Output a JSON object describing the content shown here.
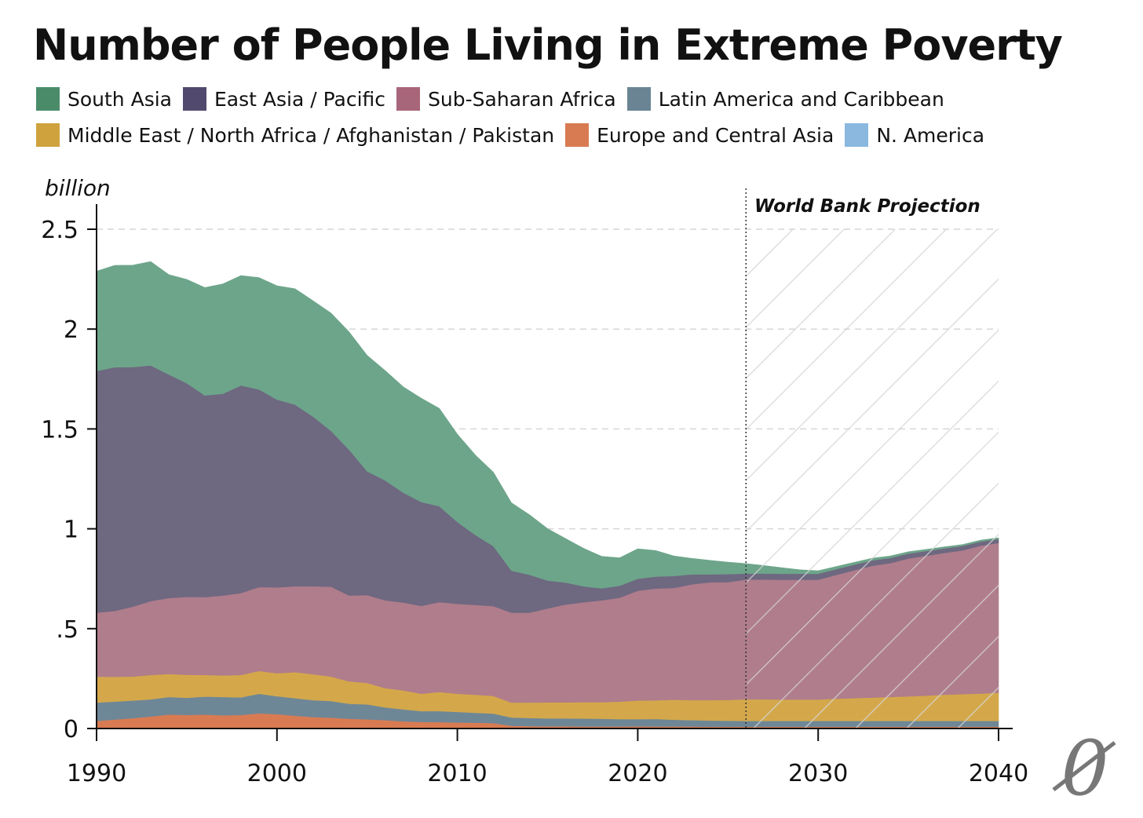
{
  "chart_data": {
    "type": "area",
    "stacked": true,
    "title": "Number of People Living in Extreme Poverty",
    "ylabel": "billion",
    "xlabel": "",
    "xlim": [
      1990,
      2040
    ],
    "ylim": [
      0,
      2.5
    ],
    "x_ticks": [
      1990,
      2000,
      2010,
      2020,
      2030,
      2040
    ],
    "y_ticks": [
      {
        "value": 0,
        "label": "0"
      },
      {
        "value": 0.5,
        "label": ".5"
      },
      {
        "value": 1,
        "label": "1"
      },
      {
        "value": 1.5,
        "label": "1.5"
      },
      {
        "value": 2,
        "label": "2"
      },
      {
        "value": 2.5,
        "label": "2.5"
      }
    ],
    "grid": "horizontal dashed",
    "legend_position": "top",
    "annotation": {
      "label": "World Bank Projection",
      "x_start": 2026
    },
    "x": [
      1990,
      1991,
      1992,
      1993,
      1994,
      1995,
      1996,
      1997,
      1998,
      1999,
      2000,
      2001,
      2002,
      2003,
      2004,
      2005,
      2006,
      2007,
      2008,
      2009,
      2010,
      2011,
      2012,
      2013,
      2014,
      2015,
      2016,
      2017,
      2018,
      2019,
      2020,
      2021,
      2022,
      2023,
      2024,
      2025,
      2026,
      2027,
      2028,
      2029,
      2030,
      2031,
      2032,
      2033,
      2034,
      2035,
      2036,
      2037,
      2038,
      2039,
      2040
    ],
    "series": [
      {
        "name": "N. America",
        "color": "#8ab8de",
        "values": [
          0.002,
          0.002,
          0.002,
          0.002,
          0.002,
          0.002,
          0.002,
          0.002,
          0.002,
          0.002,
          0.002,
          0.002,
          0.002,
          0.002,
          0.002,
          0.002,
          0.002,
          0.002,
          0.002,
          0.002,
          0.002,
          0.002,
          0.002,
          0.002,
          0.002,
          0.002,
          0.002,
          0.002,
          0.002,
          0.002,
          0.003,
          0.003,
          0.003,
          0.003,
          0.003,
          0.003,
          0.003,
          0.003,
          0.003,
          0.003,
          0.003,
          0.003,
          0.003,
          0.003,
          0.003,
          0.003,
          0.003,
          0.003,
          0.003,
          0.003,
          0.003
        ]
      },
      {
        "name": "Europe and Central Asia",
        "color": "#d97b52",
        "values": [
          0.036,
          0.043,
          0.05,
          0.058,
          0.068,
          0.066,
          0.068,
          0.064,
          0.066,
          0.074,
          0.07,
          0.062,
          0.055,
          0.052,
          0.047,
          0.044,
          0.04,
          0.034,
          0.031,
          0.03,
          0.028,
          0.027,
          0.025,
          0.012,
          0.01,
          0.009,
          0.009,
          0.008,
          0.008,
          0.008,
          0.008,
          0.007,
          0.007,
          0.007,
          0.006,
          0.006,
          0.006,
          0.006,
          0.006,
          0.006,
          0.006,
          0.006,
          0.006,
          0.006,
          0.006,
          0.006,
          0.006,
          0.006,
          0.006,
          0.006,
          0.006
        ]
      },
      {
        "name": "Latin America and Caribbean",
        "color": "#6e8797",
        "values": [
          0.092,
          0.09,
          0.088,
          0.086,
          0.088,
          0.086,
          0.09,
          0.092,
          0.088,
          0.098,
          0.09,
          0.088,
          0.085,
          0.084,
          0.075,
          0.075,
          0.064,
          0.06,
          0.054,
          0.055,
          0.053,
          0.05,
          0.048,
          0.041,
          0.041,
          0.04,
          0.04,
          0.04,
          0.039,
          0.037,
          0.036,
          0.038,
          0.034,
          0.032,
          0.031,
          0.03,
          0.029,
          0.029,
          0.029,
          0.029,
          0.029,
          0.029,
          0.029,
          0.029,
          0.029,
          0.029,
          0.029,
          0.029,
          0.029,
          0.029,
          0.029
        ]
      },
      {
        "name": "Middle East / North Africa / Afghanistan / Pakistan",
        "color": "#d4a84a",
        "values": [
          0.13,
          0.124,
          0.12,
          0.122,
          0.115,
          0.115,
          0.108,
          0.108,
          0.112,
          0.114,
          0.115,
          0.13,
          0.13,
          0.122,
          0.112,
          0.107,
          0.096,
          0.095,
          0.087,
          0.096,
          0.091,
          0.09,
          0.088,
          0.075,
          0.077,
          0.08,
          0.08,
          0.082,
          0.083,
          0.088,
          0.093,
          0.093,
          0.1,
          0.1,
          0.102,
          0.104,
          0.108,
          0.108,
          0.107,
          0.107,
          0.107,
          0.111,
          0.114,
          0.117,
          0.12,
          0.123,
          0.127,
          0.131,
          0.134,
          0.137,
          0.141
        ]
      },
      {
        "name": "Sub-Saharan Africa",
        "color": "#b07d8c",
        "values": [
          0.32,
          0.33,
          0.35,
          0.37,
          0.38,
          0.39,
          0.39,
          0.4,
          0.41,
          0.42,
          0.43,
          0.43,
          0.44,
          0.45,
          0.43,
          0.44,
          0.44,
          0.44,
          0.44,
          0.45,
          0.45,
          0.45,
          0.45,
          0.45,
          0.45,
          0.47,
          0.49,
          0.5,
          0.51,
          0.52,
          0.55,
          0.56,
          0.56,
          0.58,
          0.59,
          0.59,
          0.6,
          0.6,
          0.6,
          0.6,
          0.6,
          0.62,
          0.64,
          0.66,
          0.67,
          0.69,
          0.7,
          0.71,
          0.72,
          0.74,
          0.75
        ]
      },
      {
        "name": "East Asia / Pacific",
        "color": "#6e6880",
        "values": [
          1.21,
          1.22,
          1.2,
          1.18,
          1.12,
          1.07,
          1.01,
          1.01,
          1.04,
          0.99,
          0.94,
          0.91,
          0.85,
          0.78,
          0.73,
          0.62,
          0.6,
          0.55,
          0.52,
          0.48,
          0.41,
          0.35,
          0.3,
          0.21,
          0.19,
          0.14,
          0.11,
          0.08,
          0.06,
          0.06,
          0.06,
          0.06,
          0.06,
          0.05,
          0.04,
          0.04,
          0.03,
          0.03,
          0.03,
          0.03,
          0.03,
          0.029,
          0.028,
          0.027,
          0.026,
          0.025,
          0.024,
          0.023,
          0.022,
          0.021,
          0.02
        ]
      },
      {
        "name": "South Asia",
        "color": "#6da58a",
        "values": [
          0.5,
          0.51,
          0.51,
          0.52,
          0.5,
          0.52,
          0.54,
          0.55,
          0.55,
          0.56,
          0.57,
          0.58,
          0.58,
          0.59,
          0.59,
          0.58,
          0.55,
          0.53,
          0.52,
          0.49,
          0.44,
          0.4,
          0.37,
          0.34,
          0.3,
          0.26,
          0.22,
          0.19,
          0.16,
          0.14,
          0.15,
          0.13,
          0.1,
          0.08,
          0.07,
          0.06,
          0.05,
          0.04,
          0.03,
          0.02,
          0.015,
          0.013,
          0.012,
          0.011,
          0.01,
          0.009,
          0.008,
          0.008,
          0.007,
          0.007,
          0.006
        ]
      }
    ]
  },
  "legend": {
    "rows": [
      [
        {
          "label": "South Asia",
          "color": "#4a8c6a"
        },
        {
          "label": "East Asia / Pacific",
          "color": "#524a6e"
        },
        {
          "label": "Sub-Saharan Africa",
          "color": "#a8667a"
        },
        {
          "label": "Latin America and Caribbean",
          "color": "#6a8494"
        }
      ],
      [
        {
          "label": "Middle East / North Africa / Afghanistan / Pakistan",
          "color": "#cfa23e"
        },
        {
          "label": "Europe and Central Asia",
          "color": "#d97b52"
        },
        {
          "label": "N. America",
          "color": "#8ab8de"
        }
      ]
    ]
  },
  "logo": {
    "name": "logo-mark",
    "glyph": "0"
  }
}
